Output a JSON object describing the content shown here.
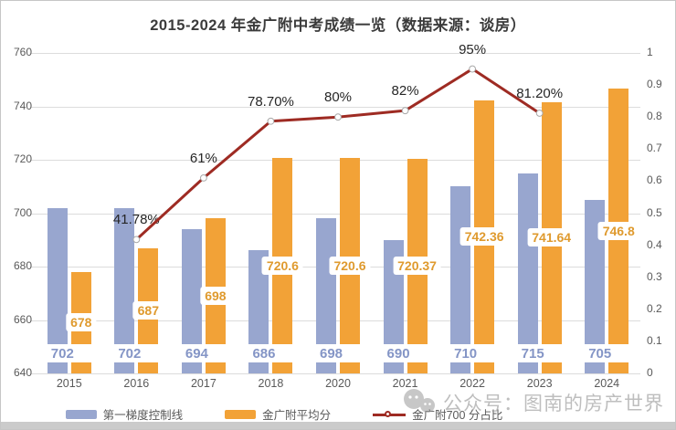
{
  "title": "2015-2024 年金广附中考成绩一览（数据来源：谈房）",
  "watermark": {
    "text": "公众号：图南的房产世界",
    "icon": "wechat-bubbles-icon"
  },
  "chart_data": {
    "type": "bar",
    "subtype": "grouped-bars-with-secondary-axis-line",
    "categories": [
      "2015",
      "2016",
      "2017",
      "2018",
      "2020",
      "2021",
      "2022",
      "2023",
      "2024"
    ],
    "series": [
      {
        "name": "第一梯度控制线",
        "type": "bar",
        "axis": "left",
        "color": "#98a6cf",
        "label_color": "#8495c6",
        "values": [
          702,
          702,
          694,
          686,
          698,
          690,
          710,
          715,
          705
        ]
      },
      {
        "name": "金广附平均分",
        "type": "bar",
        "axis": "left",
        "color": "#f2a237",
        "label_color": "#df9a2e",
        "values": [
          678,
          687,
          698,
          720.6,
          720.6,
          720.37,
          742.36,
          741.64,
          746.8
        ]
      },
      {
        "name": "金广附700 分占比",
        "type": "line",
        "axis": "right",
        "color": "#9e2b23",
        "values": [
          null,
          0.4178,
          0.61,
          0.787,
          0.8,
          0.82,
          0.95,
          0.812,
          null
        ],
        "point_labels": [
          null,
          "41.78%",
          "61%",
          "78.70%",
          "80%",
          "82%",
          "95%",
          "81.20%",
          null
        ]
      }
    ],
    "left_axis": {
      "min": 640,
      "max": 760,
      "step": 20,
      "ticks": [
        "640",
        "660",
        "680",
        "700",
        "720",
        "740",
        "760"
      ]
    },
    "right_axis": {
      "min": 0,
      "max": 1,
      "step": 0.1,
      "ticks": [
        "0",
        "0.1",
        "0.2",
        "0.3",
        "0.4",
        "0.5",
        "0.6",
        "0.7",
        "0.8",
        "0.9",
        "1"
      ]
    },
    "grid": true,
    "legend_position": "bottom"
  },
  "colors": {
    "background": "#ffffff",
    "frame_border": "#c6c6c6",
    "gridline": "#dcdcdc",
    "axis_text": "#595959",
    "percent_label_text": "#262626",
    "title_text": "#3b3b3b",
    "line_marker_fill": "#ffffff",
    "bottom_strip": "#cbcbcb",
    "watermark_text": "#8a8a8a"
  }
}
